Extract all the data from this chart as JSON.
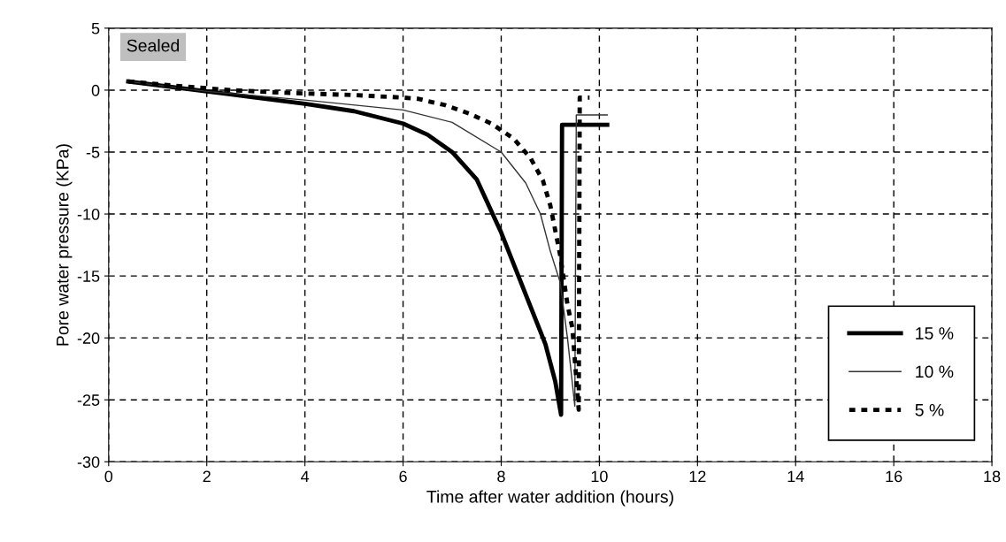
{
  "chart_data": {
    "type": "line",
    "xlabel": "Time after water addition (hours)",
    "ylabel": "Pore water pressure (KPa)",
    "xlim": [
      0,
      18
    ],
    "xticks": [
      0,
      2,
      4,
      6,
      8,
      10,
      12,
      14,
      16,
      18
    ],
    "ylim": [
      -30,
      5
    ],
    "yticks": [
      -30,
      -25,
      -20,
      -15,
      -10,
      -5,
      0,
      5
    ],
    "grid": true,
    "legend": "bottom right",
    "marker": "none",
    "annotations": [
      "Sealed"
    ],
    "series": [
      {
        "name": "15 %",
        "color": "#000000",
        "line_style": "solid",
        "x": [
          0.4,
          1,
          2,
          3,
          4,
          5,
          6,
          6.5,
          7,
          7.5,
          8,
          8.3,
          8.6,
          8.9,
          9.1,
          9.22,
          9.24,
          10.16
        ],
        "values": [
          0.7,
          0.4,
          -0.1,
          -0.6,
          -1.1,
          -1.7,
          -2.7,
          -3.6,
          -5.0,
          -7.2,
          -11.5,
          -14.5,
          -17.5,
          -20.5,
          -23.5,
          -26.2,
          -2.8,
          -2.8
        ]
      },
      {
        "name": "10 %",
        "color": "#333333",
        "line_style": "solid",
        "x": [
          0.4,
          2,
          4,
          6,
          7,
          8,
          8.5,
          8.8,
          9.0,
          9.2,
          9.35,
          9.5,
          9.53,
          10.16
        ],
        "values": [
          0.7,
          -0.1,
          -0.8,
          -1.6,
          -2.6,
          -5.0,
          -7.5,
          -10,
          -13,
          -15.5,
          -20,
          -25.5,
          -2.0,
          -2.0
        ]
      },
      {
        "name": "5 %",
        "color": "#000000",
        "line_style": "dashed",
        "x": [
          0.4,
          1.5,
          2.5,
          3.5,
          5,
          6,
          6.3,
          6.85,
          7.35,
          7.8,
          8.25,
          8.6,
          8.85,
          9.0,
          9.2,
          9.35,
          9.45,
          9.58,
          9.6,
          9.8
        ],
        "values": [
          0.7,
          0.3,
          0,
          -0.2,
          -0.4,
          -0.6,
          -0.7,
          -1.2,
          -1.9,
          -2.7,
          -3.9,
          -5.5,
          -7.3,
          -9.3,
          -13.3,
          -17.3,
          -19.2,
          -25.8,
          -0.6,
          -0.6
        ]
      }
    ]
  }
}
